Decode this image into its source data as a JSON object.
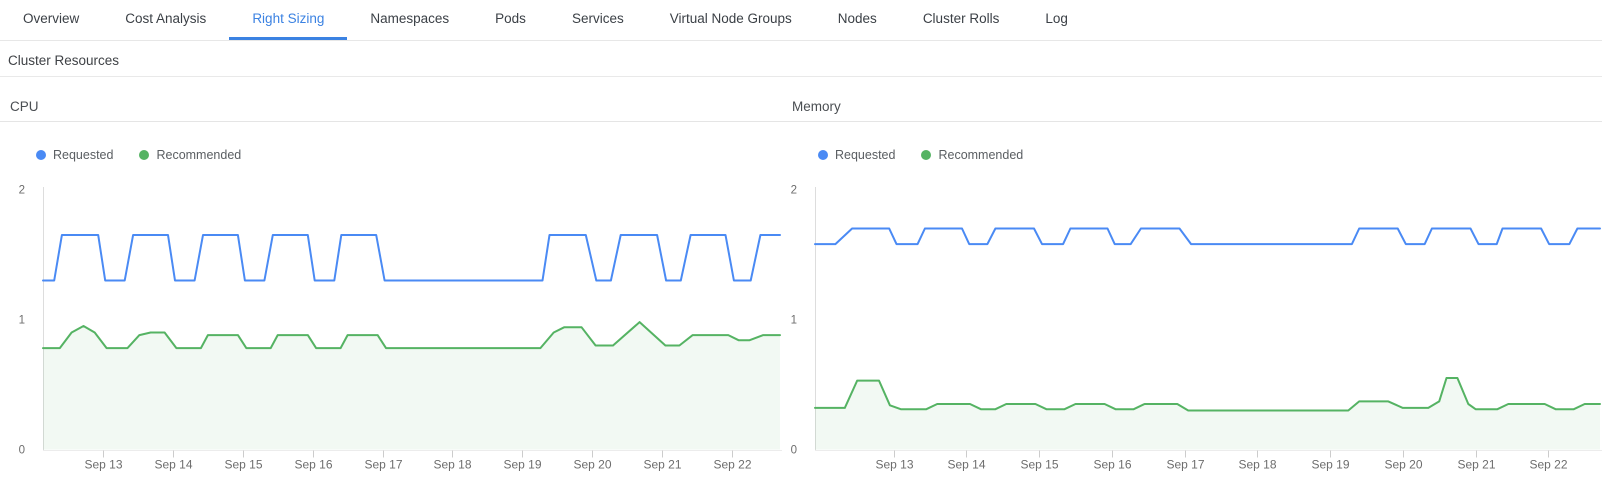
{
  "nav": {
    "tabs": [
      {
        "label": "Overview",
        "active": false
      },
      {
        "label": "Cost Analysis",
        "active": false
      },
      {
        "label": "Right Sizing",
        "active": true
      },
      {
        "label": "Namespaces",
        "active": false
      },
      {
        "label": "Pods",
        "active": false
      },
      {
        "label": "Services",
        "active": false
      },
      {
        "label": "Virtual Node Groups",
        "active": false
      },
      {
        "label": "Nodes",
        "active": false
      },
      {
        "label": "Cluster Rolls",
        "active": false
      },
      {
        "label": "Log",
        "active": false
      }
    ]
  },
  "section": {
    "title": "Cluster Resources"
  },
  "colors": {
    "active_tab": "#3b82e2",
    "requested": "#4a8af4",
    "recommended": "#55b363",
    "recommended_fill_opacity": 0.08,
    "axis_line": "#dddddd",
    "baseline": "#ececec",
    "tick": "#cccccc",
    "axis_text": "#6d6d6d"
  },
  "chart_data": [
    {
      "type": "line",
      "title": "CPU",
      "grid": false,
      "legend_position": "top-left",
      "ylim": [
        0,
        2
      ],
      "yticks": [
        0,
        1,
        2
      ],
      "xlim": [
        12.14,
        22.69
      ],
      "xticks": [
        {
          "x": 13,
          "label": "Sep 13"
        },
        {
          "x": 14,
          "label": "Sep 14"
        },
        {
          "x": 15,
          "label": "Sep 15"
        },
        {
          "x": 16,
          "label": "Sep 16"
        },
        {
          "x": 17,
          "label": "Sep 17"
        },
        {
          "x": 18,
          "label": "Sep 18"
        },
        {
          "x": 19,
          "label": "Sep 19"
        },
        {
          "x": 20,
          "label": "Sep 20"
        },
        {
          "x": 21,
          "label": "Sep 21"
        },
        {
          "x": 22,
          "label": "Sep 22"
        }
      ],
      "series": [
        {
          "name": "Requested",
          "color": "#4a8af4",
          "fill": false,
          "points": [
            [
              12.14,
              1.3
            ],
            [
              12.3,
              1.3
            ],
            [
              12.41,
              1.65
            ],
            [
              12.93,
              1.65
            ],
            [
              13.03,
              1.3
            ],
            [
              13.31,
              1.3
            ],
            [
              13.43,
              1.65
            ],
            [
              13.93,
              1.65
            ],
            [
              14.03,
              1.3
            ],
            [
              14.31,
              1.3
            ],
            [
              14.43,
              1.65
            ],
            [
              14.93,
              1.65
            ],
            [
              15.03,
              1.3
            ],
            [
              15.31,
              1.3
            ],
            [
              15.43,
              1.65
            ],
            [
              15.93,
              1.65
            ],
            [
              16.03,
              1.3
            ],
            [
              16.31,
              1.3
            ],
            [
              16.41,
              1.65
            ],
            [
              16.91,
              1.65
            ],
            [
              17.03,
              1.3
            ],
            [
              19.29,
              1.3
            ],
            [
              19.39,
              1.65
            ],
            [
              19.91,
              1.65
            ],
            [
              20.06,
              1.3
            ],
            [
              20.27,
              1.3
            ],
            [
              20.41,
              1.65
            ],
            [
              20.93,
              1.65
            ],
            [
              21.06,
              1.3
            ],
            [
              21.27,
              1.3
            ],
            [
              21.41,
              1.65
            ],
            [
              21.91,
              1.65
            ],
            [
              22.03,
              1.3
            ],
            [
              22.27,
              1.3
            ],
            [
              22.41,
              1.65
            ],
            [
              22.69,
              1.65
            ]
          ]
        },
        {
          "name": "Recommended",
          "color": "#55b363",
          "fill": true,
          "points": [
            [
              12.14,
              0.78
            ],
            [
              12.38,
              0.78
            ],
            [
              12.55,
              0.9
            ],
            [
              12.72,
              0.95
            ],
            [
              12.88,
              0.9
            ],
            [
              13.05,
              0.78
            ],
            [
              13.35,
              0.78
            ],
            [
              13.52,
              0.88
            ],
            [
              13.68,
              0.9
            ],
            [
              13.88,
              0.9
            ],
            [
              14.05,
              0.78
            ],
            [
              14.4,
              0.78
            ],
            [
              14.5,
              0.88
            ],
            [
              14.93,
              0.88
            ],
            [
              15.05,
              0.78
            ],
            [
              15.4,
              0.78
            ],
            [
              15.5,
              0.88
            ],
            [
              15.93,
              0.88
            ],
            [
              16.05,
              0.78
            ],
            [
              16.4,
              0.78
            ],
            [
              16.5,
              0.88
            ],
            [
              16.93,
              0.88
            ],
            [
              17.05,
              0.78
            ],
            [
              19.26,
              0.78
            ],
            [
              19.45,
              0.9
            ],
            [
              19.6,
              0.94
            ],
            [
              19.85,
              0.94
            ],
            [
              20.05,
              0.8
            ],
            [
              20.3,
              0.8
            ],
            [
              20.68,
              0.98
            ],
            [
              21.05,
              0.8
            ],
            [
              21.25,
              0.8
            ],
            [
              21.44,
              0.88
            ],
            [
              21.95,
              0.88
            ],
            [
              22.1,
              0.84
            ],
            [
              22.25,
              0.84
            ],
            [
              22.45,
              0.88
            ],
            [
              22.69,
              0.88
            ]
          ]
        }
      ]
    },
    {
      "type": "line",
      "title": "Memory",
      "grid": false,
      "legend_position": "top-left",
      "ylim": [
        0,
        2
      ],
      "yticks": [
        0,
        1,
        2
      ],
      "xlim": [
        11.92,
        22.71
      ],
      "xticks": [
        {
          "x": 13,
          "label": "Sep 13"
        },
        {
          "x": 14,
          "label": "Sep 14"
        },
        {
          "x": 15,
          "label": "Sep 15"
        },
        {
          "x": 16,
          "label": "Sep 16"
        },
        {
          "x": 17,
          "label": "Sep 17"
        },
        {
          "x": 18,
          "label": "Sep 18"
        },
        {
          "x": 19,
          "label": "Sep 19"
        },
        {
          "x": 20,
          "label": "Sep 20"
        },
        {
          "x": 21,
          "label": "Sep 21"
        },
        {
          "x": 22,
          "label": "Sep 22"
        }
      ],
      "series": [
        {
          "name": "Requested",
          "color": "#4a8af4",
          "fill": false,
          "points": [
            [
              11.92,
              1.58
            ],
            [
              12.2,
              1.58
            ],
            [
              12.43,
              1.7
            ],
            [
              12.94,
              1.7
            ],
            [
              13.04,
              1.58
            ],
            [
              13.33,
              1.58
            ],
            [
              13.43,
              1.7
            ],
            [
              13.94,
              1.7
            ],
            [
              14.04,
              1.58
            ],
            [
              14.29,
              1.58
            ],
            [
              14.4,
              1.7
            ],
            [
              14.93,
              1.7
            ],
            [
              15.04,
              1.58
            ],
            [
              15.33,
              1.58
            ],
            [
              15.43,
              1.7
            ],
            [
              15.94,
              1.7
            ],
            [
              16.04,
              1.58
            ],
            [
              16.26,
              1.58
            ],
            [
              16.4,
              1.7
            ],
            [
              16.93,
              1.7
            ],
            [
              17.09,
              1.58
            ],
            [
              19.3,
              1.58
            ],
            [
              19.4,
              1.7
            ],
            [
              19.93,
              1.7
            ],
            [
              20.04,
              1.58
            ],
            [
              20.3,
              1.58
            ],
            [
              20.4,
              1.7
            ],
            [
              20.93,
              1.7
            ],
            [
              21.04,
              1.58
            ],
            [
              21.29,
              1.58
            ],
            [
              21.37,
              1.7
            ],
            [
              21.9,
              1.7
            ],
            [
              22.01,
              1.58
            ],
            [
              22.29,
              1.58
            ],
            [
              22.4,
              1.7
            ],
            [
              22.71,
              1.7
            ]
          ]
        },
        {
          "name": "Recommended",
          "color": "#55b363",
          "fill": true,
          "points": [
            [
              11.92,
              0.32
            ],
            [
              12.33,
              0.32
            ],
            [
              12.5,
              0.53
            ],
            [
              12.8,
              0.53
            ],
            [
              12.95,
              0.34
            ],
            [
              13.1,
              0.31
            ],
            [
              13.45,
              0.31
            ],
            [
              13.6,
              0.35
            ],
            [
              14.05,
              0.35
            ],
            [
              14.2,
              0.31
            ],
            [
              14.4,
              0.31
            ],
            [
              14.55,
              0.35
            ],
            [
              14.95,
              0.35
            ],
            [
              15.1,
              0.31
            ],
            [
              15.35,
              0.31
            ],
            [
              15.5,
              0.35
            ],
            [
              15.9,
              0.35
            ],
            [
              16.05,
              0.31
            ],
            [
              16.3,
              0.31
            ],
            [
              16.45,
              0.35
            ],
            [
              16.9,
              0.35
            ],
            [
              17.05,
              0.3
            ],
            [
              19.25,
              0.3
            ],
            [
              19.4,
              0.37
            ],
            [
              19.8,
              0.37
            ],
            [
              20.0,
              0.32
            ],
            [
              20.35,
              0.32
            ],
            [
              20.5,
              0.37
            ],
            [
              20.6,
              0.55
            ],
            [
              20.75,
              0.55
            ],
            [
              20.9,
              0.35
            ],
            [
              21.0,
              0.31
            ],
            [
              21.3,
              0.31
            ],
            [
              21.45,
              0.35
            ],
            [
              21.95,
              0.35
            ],
            [
              22.1,
              0.31
            ],
            [
              22.35,
              0.31
            ],
            [
              22.5,
              0.35
            ],
            [
              22.71,
              0.35
            ]
          ]
        }
      ]
    }
  ]
}
